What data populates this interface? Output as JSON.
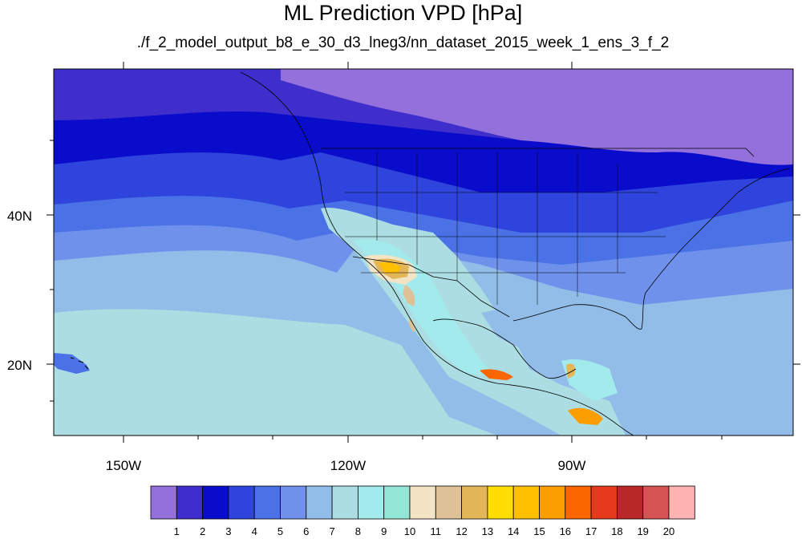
{
  "title": "ML Prediction VPD [hPa]",
  "subtitle": "./f_2_model_output_b8_e_30_d3_lneg3/nn_dataset_2015_week_1_ens_3_f_2",
  "map": {
    "region": "North America and eastern Pacific",
    "projection": "cylindrical equidistant",
    "lon_range": [
      -160,
      -61
    ],
    "lat_range": [
      10,
      59
    ],
    "lon_ticks": [
      "150W",
      "120W",
      "90W"
    ],
    "lat_ticks": [
      "40N",
      "20N"
    ],
    "features": [
      "coastlines",
      "country borders",
      "US state borders"
    ]
  },
  "colorbar": {
    "labels": [
      "1",
      "2",
      "3",
      "4",
      "5",
      "6",
      "7",
      "8",
      "9",
      "10",
      "11",
      "12",
      "13",
      "14",
      "15",
      "16",
      "17",
      "18",
      "19",
      "20"
    ],
    "colors": [
      "#9370db",
      "#3f2ecb",
      "#0a0ccb",
      "#2e44dc",
      "#4a72e6",
      "#6f91ec",
      "#92bde9",
      "#acdde2",
      "#a2eaeb",
      "#93e6d6",
      "#f2e4c4",
      "#dfc197",
      "#e4b65a",
      "#fede00",
      "#fec000",
      "#fc9d00",
      "#fc6600",
      "#e63a1c",
      "#b92828",
      "#d55353",
      "#feb3b3"
    ]
  }
}
